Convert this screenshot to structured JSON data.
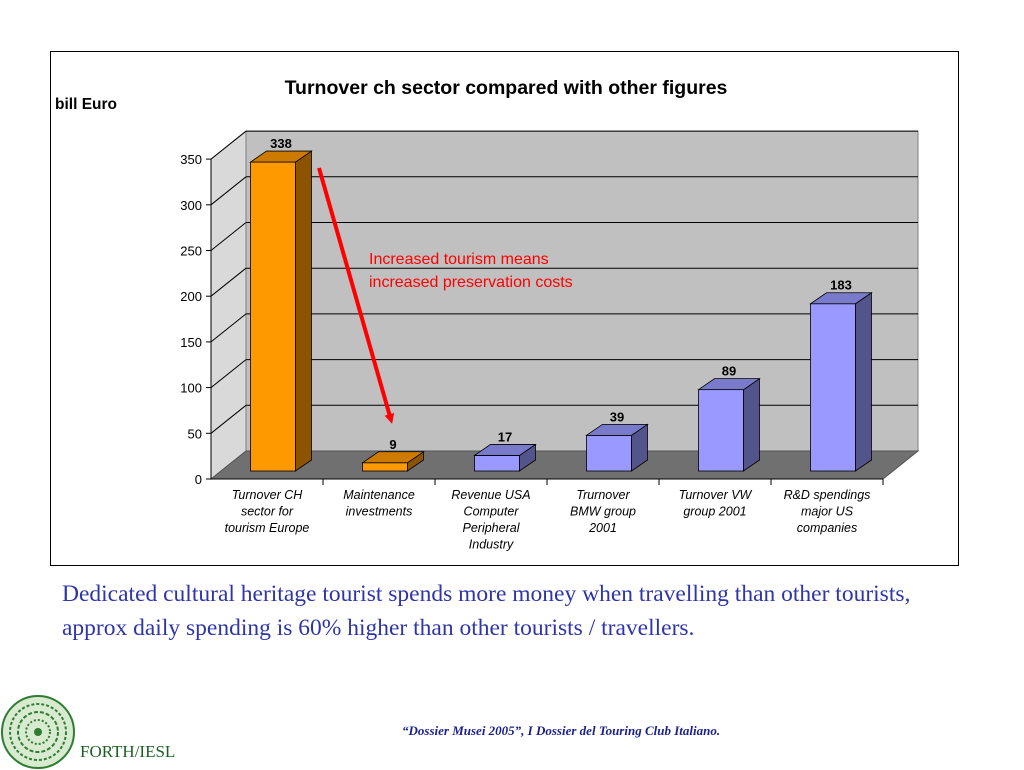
{
  "chart_data": {
    "type": "bar",
    "title": "Turnover ch sector compared with other figures",
    "ylabel": "bill Euro",
    "xlabel": "",
    "ylim": [
      0,
      350
    ],
    "yticks": [
      0,
      50,
      100,
      150,
      200,
      250,
      300,
      350
    ],
    "categories": [
      [
        "Turnover CH",
        "sector for",
        "tourism Europe"
      ],
      [
        "Maintenance",
        "investments"
      ],
      [
        "Revenue USA",
        "Computer",
        "Peripheral",
        "Industry"
      ],
      [
        "Trurnover",
        "BMW group",
        "2001"
      ],
      [
        "Turnover VW",
        "group 2001"
      ],
      [
        "R&D spendings",
        "major US",
        "companies"
      ]
    ],
    "values": [
      338,
      9,
      17,
      39,
      89,
      183
    ],
    "data_labels": [
      "338",
      "9",
      "17",
      "39",
      "89",
      "183"
    ],
    "bar_colors": [
      "#ff9900",
      "#ff9900",
      "#9999ff",
      "#9999ff",
      "#9999ff",
      "#9999ff"
    ],
    "grid": true,
    "style": "3d",
    "annotation": {
      "lines": [
        "Increased tourism means",
        "increased preservation costs"
      ],
      "color": "#ff0000"
    }
  },
  "body_text": "Dedicated cultural heritage tourist spends more money when travelling than other tourists, approx daily spending is 60% higher than other tourists / travellers.",
  "source_note": "“Dossier Musei 2005”, I Dossier del Touring Club Italiano.",
  "logo_text": "FORTH/IESL"
}
